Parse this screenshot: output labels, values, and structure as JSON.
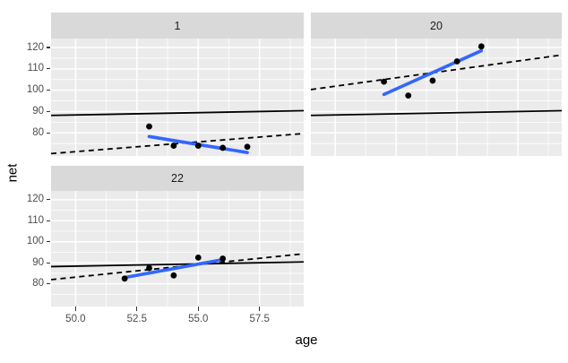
{
  "figure": {
    "background": "#ffffff"
  },
  "chart_data": {
    "type": "scatter",
    "title": "",
    "description": "Faceted scatter plots of net vs age with per-facet blue linear fit, flat solid black reference line and rising dashed black reference line",
    "facets": [
      "1",
      "20",
      "22"
    ],
    "xlabel": "age",
    "ylabel": "net",
    "x_range": [
      49.0,
      59.3
    ],
    "y_range": [
      69.2,
      124.2
    ],
    "x_major_ticks": [
      50.0,
      52.5,
      55.0,
      57.5
    ],
    "x_tick_labels": [
      "50.0",
      "52.5",
      "55.0",
      "57.5"
    ],
    "x_minor_ticks": [
      51.25,
      53.75,
      56.25,
      58.75
    ],
    "y_major_ticks": [
      80,
      90,
      100,
      110,
      120
    ],
    "y_tick_labels": [
      "80",
      "90",
      "100",
      "110",
      "120"
    ],
    "y_minor_ticks": [
      75,
      85,
      95,
      105,
      115
    ],
    "grid": true,
    "legend": "none",
    "panels": [
      {
        "label": "1",
        "points": [
          [
            53.0,
            83.0
          ],
          [
            54.0,
            74.0
          ],
          [
            55.0,
            74.0
          ],
          [
            56.0,
            73.0
          ],
          [
            57.0,
            73.5
          ]
        ],
        "series": [
          {
            "name": "dashed-black-line",
            "style": "dashed-black",
            "points": [
              [
                49.0,
                70.3
              ],
              [
                59.3,
                79.7
              ]
            ]
          },
          {
            "name": "solid-black-line",
            "style": "solid-black",
            "points": [
              [
                49.0,
                88.2
              ],
              [
                59.3,
                90.4
              ]
            ]
          },
          {
            "name": "blue-fit-line",
            "style": "solid-blue",
            "points": [
              [
                53.0,
                78.3
              ],
              [
                57.0,
                70.8
              ]
            ]
          }
        ]
      },
      {
        "label": "20",
        "points": [
          [
            52.0,
            104.0
          ],
          [
            53.0,
            97.5
          ],
          [
            54.0,
            104.5
          ],
          [
            55.0,
            113.5
          ],
          [
            56.0,
            120.5
          ]
        ],
        "series": [
          {
            "name": "dashed-black-line",
            "style": "dashed-black",
            "points": [
              [
                49.0,
                100.3
              ],
              [
                59.3,
                116.5
              ]
            ]
          },
          {
            "name": "solid-black-line",
            "style": "solid-black",
            "points": [
              [
                49.0,
                88.2
              ],
              [
                59.3,
                90.4
              ]
            ]
          },
          {
            "name": "blue-fit-line",
            "style": "solid-blue",
            "points": [
              [
                52.0,
                98.0
              ],
              [
                56.0,
                118.5
              ]
            ]
          }
        ]
      },
      {
        "label": "22",
        "points": [
          [
            52.0,
            82.5
          ],
          [
            53.0,
            87.5
          ],
          [
            54.0,
            84.0
          ],
          [
            55.0,
            92.5
          ],
          [
            56.0,
            92.0
          ]
        ],
        "series": [
          {
            "name": "dashed-black-line",
            "style": "dashed-black",
            "points": [
              [
                49.0,
                82.0
              ],
              [
                59.3,
                94.3
              ]
            ]
          },
          {
            "name": "solid-black-line",
            "style": "solid-black",
            "points": [
              [
                49.0,
                88.2
              ],
              [
                59.3,
                90.4
              ]
            ]
          },
          {
            "name": "blue-fit-line",
            "style": "solid-blue",
            "points": [
              [
                52.0,
                83.0
              ],
              [
                56.0,
                91.5
              ]
            ]
          }
        ]
      }
    ],
    "colors": {
      "smooth_line": "#3366ff",
      "line_black": "#000000",
      "point": "#000000",
      "panel_background": "#ebebeb",
      "strip_background": "#d9d9d9",
      "grid_line": "#ffffff",
      "tick_label": "#4d4d4d",
      "axis_title": "#000000"
    }
  }
}
